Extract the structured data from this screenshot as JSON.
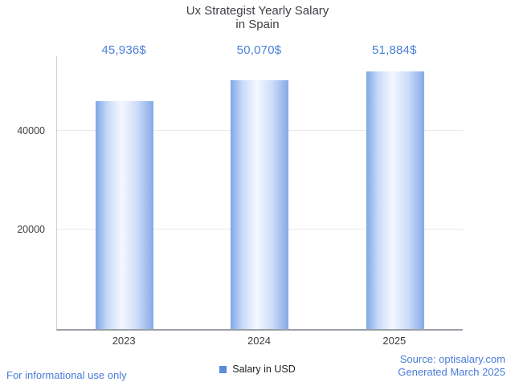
{
  "title": {
    "line1": "Ux Strategist Yearly Salary",
    "line2": "in Spain"
  },
  "chart_data": {
    "type": "bar",
    "title": "Ux Strategist Yearly Salary in Spain",
    "categories": [
      "2023",
      "2024",
      "2025"
    ],
    "values": [
      45936,
      50070,
      51884
    ],
    "value_labels": [
      "45,936$",
      "50,070$",
      "51,884$"
    ],
    "xlabel": "",
    "ylabel": "",
    "ylim": [
      0,
      55000
    ],
    "yticks": [
      20000,
      40000
    ],
    "ytick_labels": [
      "20000",
      "40000"
    ],
    "grid": "horizontal",
    "legend_entries": [
      "Salary in USD"
    ],
    "legend_position": "bottom",
    "bar_color_edge": "#7ea6e6",
    "bar_color_center": "#f4f8ff"
  },
  "legend": {
    "label": "Salary in USD",
    "swatch_color": "#5b8ad9"
  },
  "footer": {
    "disclaimer": "For informational use only",
    "source": "Source: optisalary.com",
    "generated": "Generated March 2025"
  },
  "colors": {
    "accent_blue": "#4b80d9",
    "title_text": "#3d4045",
    "axis_line": "#9aa0a6",
    "grid_line": "#e9e9e9"
  }
}
